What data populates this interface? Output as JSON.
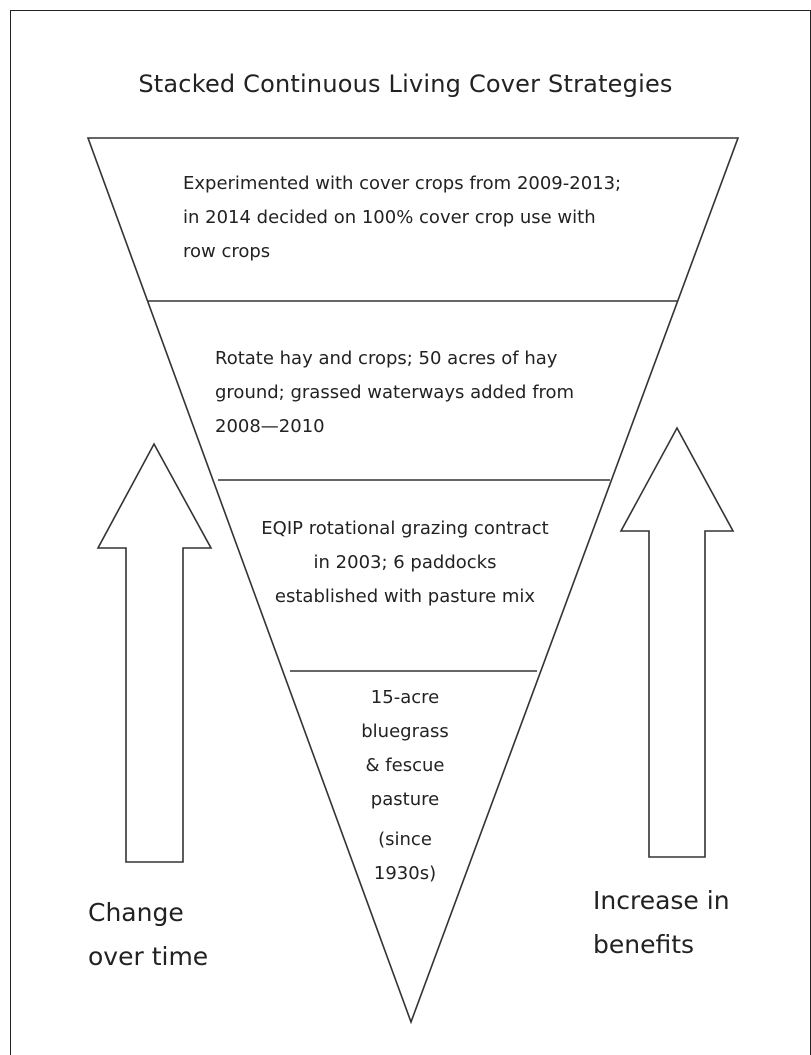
{
  "title": "Stacked Continuous Living Cover Strategies",
  "layers": [
    {
      "lines": [
        "Experimented with cover crops from 2009-2013;",
        "in 2014 decided on 100% cover crop use with",
        "row crops"
      ]
    },
    {
      "lines": [
        "Rotate hay and crops; 50 acres of hay",
        "ground; grassed waterways added from",
        "2008—2010"
      ]
    },
    {
      "lines": [
        "EQIP rotational grazing contract",
        "in 2003; 6 paddocks",
        "established with pasture mix"
      ]
    },
    {
      "lines": [
        "15-acre",
        "bluegrass",
        "& fescue",
        "pasture",
        "(since",
        "1930s)"
      ]
    }
  ],
  "left_arrow": {
    "label_lines": [
      "Change",
      "over time"
    ]
  },
  "right_arrow": {
    "label_lines": [
      "Increase in",
      "benefits"
    ]
  },
  "colors": {
    "stroke": "#333333",
    "fill": "#ffffff",
    "text": "#222222"
  }
}
